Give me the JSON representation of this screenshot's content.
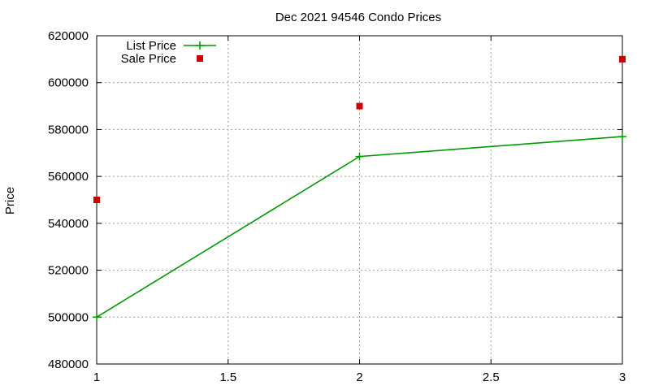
{
  "chart_data": {
    "type": "line",
    "title": "Dec 2021 94546 Condo Prices",
    "xlabel": "",
    "ylabel": "Price",
    "xlim": [
      1,
      3
    ],
    "ylim": [
      480000,
      620000
    ],
    "x_ticks": [
      1,
      1.5,
      2,
      2.5,
      3
    ],
    "y_ticks": [
      480000,
      500000,
      520000,
      540000,
      560000,
      580000,
      600000,
      620000
    ],
    "grid": true,
    "legend_position": "top-left",
    "series": [
      {
        "name": "List Price",
        "style": "line-points",
        "marker": "plus",
        "color": "#009900",
        "x": [
          1,
          2,
          3
        ],
        "y": [
          500000,
          568500,
          577000
        ]
      },
      {
        "name": "Sale Price",
        "style": "points",
        "marker": "square",
        "color": "#cc0000",
        "x": [
          1,
          2,
          3
        ],
        "y": [
          550000,
          590000,
          610000
        ]
      }
    ]
  }
}
